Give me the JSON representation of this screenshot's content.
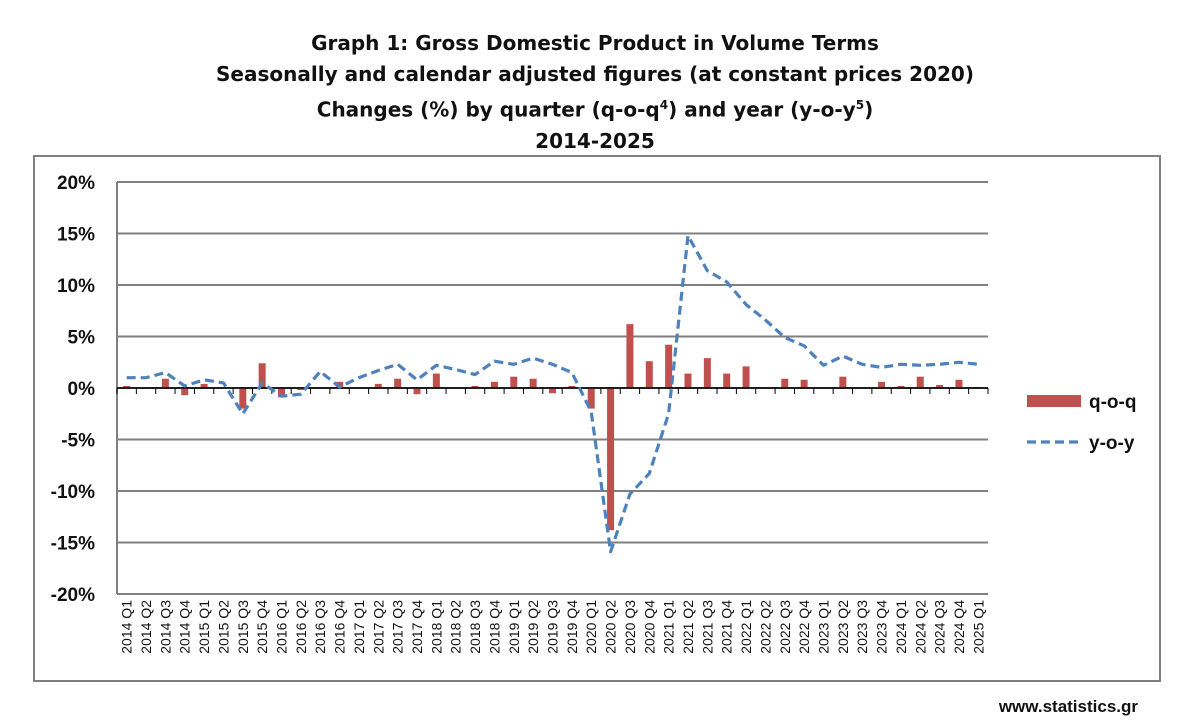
{
  "chart_data": {
    "type": "bar",
    "title_lines": [
      {
        "text": "Graph 1: Gross Domestic Product in Volume Terms"
      },
      {
        "text": "Seasonally and calendar adjusted figures (at constant prices 2020)"
      },
      {
        "text": "Changes (%) by quarter (q-o-q",
        "sup": "4",
        "text2": ") and year (y-o-y",
        "sup2": "5",
        "text3": ")"
      },
      {
        "text": "2014-2025"
      }
    ],
    "ylim": [
      -20,
      20
    ],
    "yticks": [
      "20%",
      "15%",
      "10%",
      "5%",
      "0%",
      "-5%",
      "-10%",
      "-15%",
      "-20%"
    ],
    "ytick_values": [
      20,
      15,
      10,
      5,
      0,
      -5,
      -10,
      -15,
      -20
    ],
    "grid": true,
    "legend_position": "right",
    "categories": [
      "2014 Q1",
      "2014 Q2",
      "2014 Q3",
      "2014 Q4",
      "2015 Q1",
      "2015 Q2",
      "2015 Q3",
      "2015 Q4",
      "2016 Q1",
      "2016 Q2",
      "2016 Q3",
      "2016 Q4",
      "2017 Q1",
      "2017 Q2",
      "2017 Q3",
      "2017 Q4",
      "2018 Q1",
      "2018 Q2",
      "2018 Q3",
      "2018 Q4",
      "2019 Q1",
      "2019 Q2",
      "2019 Q3",
      "2019 Q4",
      "2020 Q1",
      "2020 Q2",
      "2020 Q3",
      "2020 Q4",
      "2021 Q1",
      "2021 Q2",
      "2021 Q3",
      "2021 Q4",
      "2022 Q1",
      "2022 Q2",
      "2022 Q3",
      "2022 Q4",
      "2023 Q1",
      "2023 Q2",
      "2023 Q3",
      "2023 Q4",
      "2024 Q1",
      "2024 Q2",
      "2024 Q3",
      "2024 Q4",
      "2025 Q1"
    ],
    "series": [
      {
        "name": "q-o-q",
        "kind": "bar",
        "color": "#c0504d",
        "values": [
          0.2,
          0.0,
          0.9,
          -0.7,
          0.4,
          0.0,
          -2.0,
          2.4,
          -0.9,
          -0.2,
          0.0,
          0.6,
          0.0,
          0.4,
          0.9,
          -0.6,
          1.4,
          0.0,
          0.2,
          0.6,
          1.1,
          0.9,
          -0.5,
          0.2,
          -2.0,
          -13.8,
          6.2,
          2.6,
          4.2,
          1.4,
          2.9,
          1.4,
          2.1,
          0.0,
          0.9,
          0.8,
          0.0,
          1.1,
          0.0,
          0.6,
          0.2,
          1.1,
          0.3,
          0.8,
          0.1
        ]
      },
      {
        "name": "y-o-y",
        "kind": "line",
        "color": "#4f81bd",
        "values": [
          1.0,
          1.0,
          1.5,
          0.2,
          0.8,
          0.5,
          -2.5,
          0.5,
          -0.8,
          -0.6,
          1.6,
          0.1,
          1.0,
          1.7,
          2.3,
          0.8,
          2.2,
          1.8,
          1.3,
          2.6,
          2.3,
          2.9,
          2.3,
          1.5,
          -2.3,
          -15.9,
          -10.3,
          -8.3,
          -2.5,
          14.8,
          11.4,
          10.3,
          8.1,
          6.6,
          4.9,
          4.1,
          2.2,
          3.1,
          2.3,
          2.0,
          2.3,
          2.2,
          2.3,
          2.5,
          2.3
        ]
      }
    ]
  },
  "footer": {
    "source": "www.statistics.gr"
  }
}
